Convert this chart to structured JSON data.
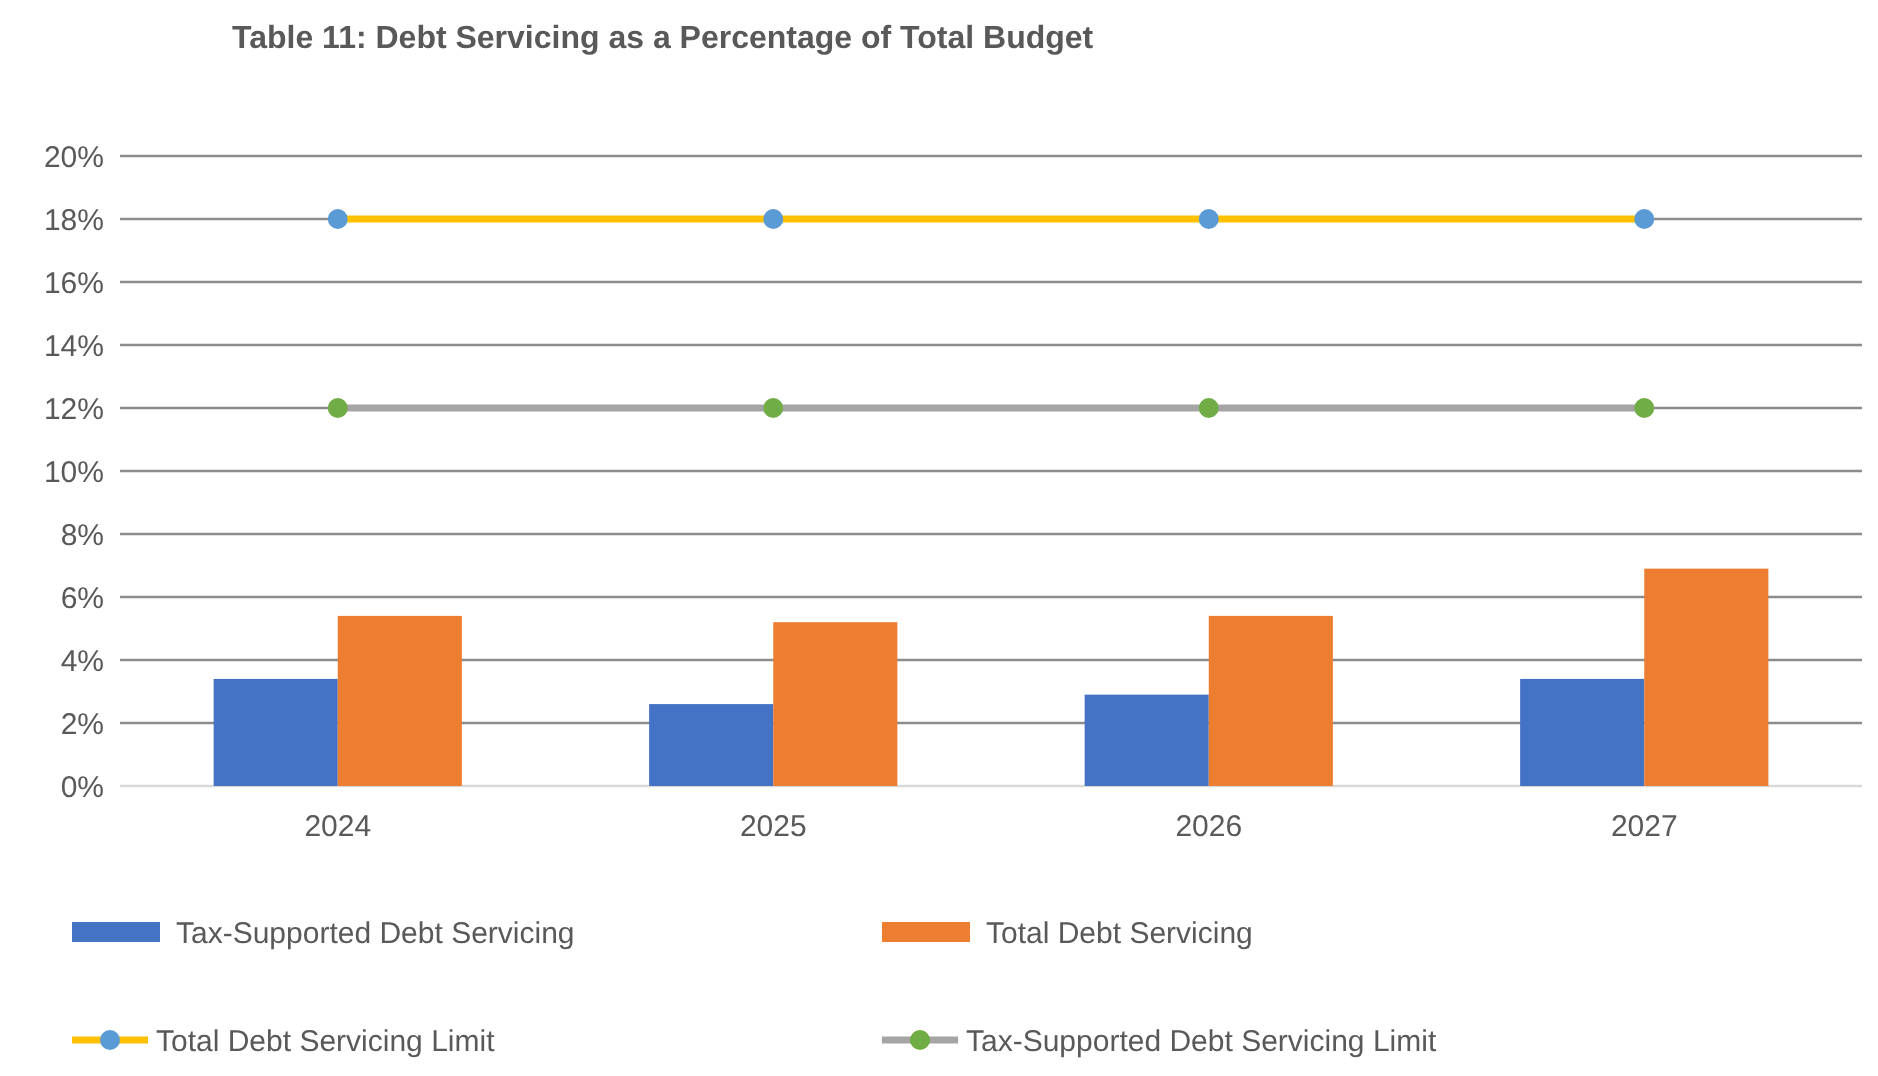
{
  "chart_data": {
    "type": "bar",
    "title": "Table 11: Debt Servicing as a Percentage of Total Budget",
    "categories": [
      "2024",
      "2025",
      "2026",
      "2027"
    ],
    "series": [
      {
        "name": "Tax-Supported Debt Servicing",
        "color": "#4472c4",
        "values": [
          3.4,
          2.6,
          2.9,
          3.4
        ]
      },
      {
        "name": "Total Debt Servicing",
        "color": "#ed7d31",
        "values": [
          5.4,
          5.2,
          5.4,
          6.9
        ]
      },
      {
        "name": "Total Debt Servicing Limit",
        "type": "line",
        "color": "#ffc000",
        "colors": [
          "#5b9bd5",
          "#5b9bd5",
          "#5b9bd5",
          "#5b9bd5"
        ],
        "values": [
          18,
          18,
          18,
          18
        ]
      },
      {
        "name": "Tax-Supported Debt Servicing Limit",
        "type": "line",
        "color": "#a5a5a5",
        "colors": [
          "#70ad47",
          "#70ad47",
          "#70ad47",
          "#70ad47"
        ],
        "values": [
          12,
          12,
          12,
          12
        ]
      }
    ],
    "ylim": [
      0,
      20
    ],
    "yticks": [
      {
        "value": 0,
        "label": "0%"
      },
      {
        "value": 2,
        "label": "2%"
      },
      {
        "value": 4,
        "label": "4%"
      },
      {
        "value": 6,
        "label": "6%"
      },
      {
        "value": 8,
        "label": "8%"
      },
      {
        "value": 10,
        "label": "10%"
      },
      {
        "value": 12,
        "label": "12%"
      },
      {
        "value": 14,
        "label": "14%"
      },
      {
        "value": 16,
        "label": "16%"
      },
      {
        "value": 18,
        "label": "18%"
      },
      {
        "value": 20,
        "label": "20%"
      }
    ],
    "grid": "y",
    "legend": "bottom",
    "marker": "circle",
    "line_style": "solid"
  }
}
